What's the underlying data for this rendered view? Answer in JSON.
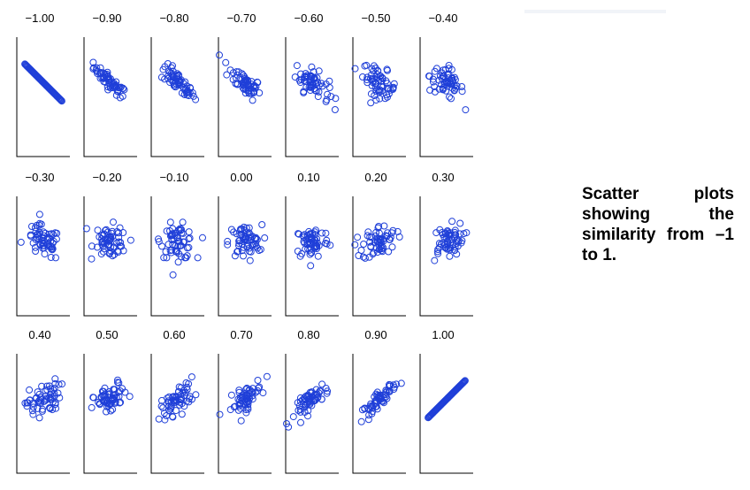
{
  "caption": "Scatter plots showing the similarity from –1 to 1.",
  "colors": {
    "point": "#1f3fd8",
    "axis": "#000000",
    "background": "#ffffff"
  },
  "chart_data": {
    "type": "scatter",
    "panel_titles": [
      "−1.00",
      "−0.90",
      "−0.80",
      "−0.70",
      "−0.60",
      "−0.50",
      "−0.40",
      "−0.30",
      "−0.20",
      "−0.10",
      "0.00",
      "0.10",
      "0.20",
      "0.30",
      "0.40",
      "0.50",
      "0.60",
      "0.70",
      "0.80",
      "0.90",
      "1.00"
    ],
    "correlations": [
      -1.0,
      -0.9,
      -0.8,
      -0.7,
      -0.6,
      -0.5,
      -0.4,
      -0.3,
      -0.2,
      -0.1,
      0.0,
      0.1,
      0.2,
      0.3,
      0.4,
      0.5,
      0.6,
      0.7,
      0.8,
      0.9,
      1.0
    ],
    "points_per_panel": 60,
    "marker": "open circle",
    "grid": false
  }
}
